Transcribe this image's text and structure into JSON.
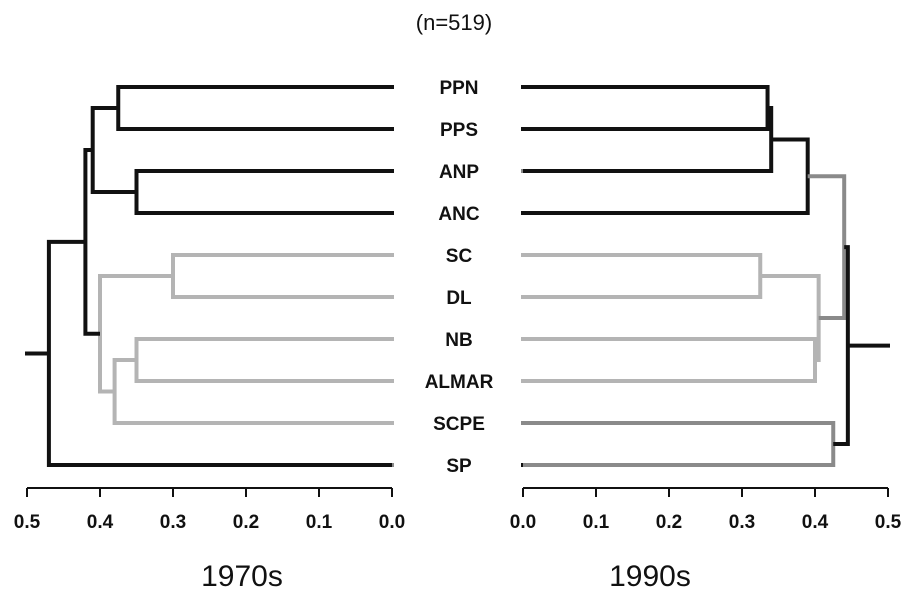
{
  "sample_size": "(n=519)",
  "colors": {
    "dark": "#111111",
    "gray": "#8a8a8a",
    "light": "#b4b4b4",
    "axis": "#111111"
  },
  "chart_data": [
    {
      "type": "dendrogram",
      "title": "1970s",
      "orientation": "right",
      "axis": {
        "range": [
          0.5,
          0.0
        ],
        "ticks": [
          "0.5",
          "0.4",
          "0.3",
          "0.2",
          "0.1",
          "0.0"
        ]
      },
      "leaves": [
        "PPN",
        "PPS",
        "ANP",
        "ANC",
        "SC",
        "DL",
        "NB",
        "ALMAR",
        "SCPE",
        "SP"
      ],
      "merges": [
        {
          "id": "m1",
          "a": "PPN",
          "b": "PPS",
          "height": 0.375,
          "color": "dark"
        },
        {
          "id": "m2",
          "a": "ANP",
          "b": "ANC",
          "height": 0.35,
          "color": "dark"
        },
        {
          "id": "m3",
          "a": "SC",
          "b": "DL",
          "height": 0.3,
          "color": "light"
        },
        {
          "id": "m4",
          "a": "NB",
          "b": "ALMAR",
          "height": 0.35,
          "color": "light"
        },
        {
          "id": "m5",
          "a": "m4",
          "b": "SCPE",
          "height": 0.38,
          "color": "light"
        },
        {
          "id": "m6",
          "a": "m3",
          "b": "m5",
          "height": 0.4,
          "color": "light"
        },
        {
          "id": "m7",
          "a": "m1",
          "b": "m2",
          "height": 0.41,
          "color": "dark"
        },
        {
          "id": "m8",
          "a": "m7",
          "b": "m6",
          "height": 0.42,
          "color": "dark"
        },
        {
          "id": "m9",
          "a": "m8",
          "b": "SP",
          "height": 0.47,
          "color": "dark"
        }
      ],
      "leaf_colors": {
        "PPN": "dark",
        "PPS": "dark",
        "ANP": "dark",
        "ANC": "dark",
        "SC": "light",
        "DL": "light",
        "NB": "light",
        "ALMAR": "light",
        "SCPE": "light",
        "SP": "gray"
      }
    },
    {
      "type": "dendrogram",
      "title": "1990s",
      "orientation": "left",
      "axis": {
        "range": [
          0.0,
          0.5
        ],
        "ticks": [
          "0.0",
          "0.1",
          "0.2",
          "0.3",
          "0.4",
          "0.5"
        ]
      },
      "leaves": [
        "PPN",
        "PPS",
        "ANP",
        "ANC",
        "SC",
        "DL",
        "NB",
        "ALMAR",
        "SCPE",
        "SP"
      ],
      "merges": [
        {
          "id": "n1",
          "a": "PPN",
          "b": "PPS",
          "height": 0.335,
          "color": "dark"
        },
        {
          "id": "n2",
          "a": "n1",
          "b": "ANP",
          "height": 0.34,
          "color": "dark"
        },
        {
          "id": "n3",
          "a": "n2",
          "b": "ANC",
          "height": 0.39,
          "color": "dark"
        },
        {
          "id": "n4",
          "a": "SC",
          "b": "DL",
          "height": 0.325,
          "color": "light"
        },
        {
          "id": "n5",
          "a": "NB",
          "b": "ALMAR",
          "height": 0.4,
          "color": "light"
        },
        {
          "id": "n6",
          "a": "n4",
          "b": "n5",
          "height": 0.405,
          "color": "light"
        },
        {
          "id": "n7",
          "a": "SCPE",
          "b": "SP",
          "height": 0.425,
          "color": "gray"
        },
        {
          "id": "n8",
          "a": "n3",
          "b": "n6",
          "height": 0.44,
          "color": "gray"
        },
        {
          "id": "n9",
          "a": "n8",
          "b": "n7",
          "height": 0.445,
          "color": "dark"
        }
      ],
      "leaf_colors": {
        "PPN": "dark",
        "PPS": "dark",
        "ANP": "gray",
        "ANC": "dark",
        "SC": "light",
        "DL": "light",
        "NB": "light",
        "ALMAR": "light",
        "SCPE": "gray",
        "SP": "dark"
      }
    }
  ]
}
